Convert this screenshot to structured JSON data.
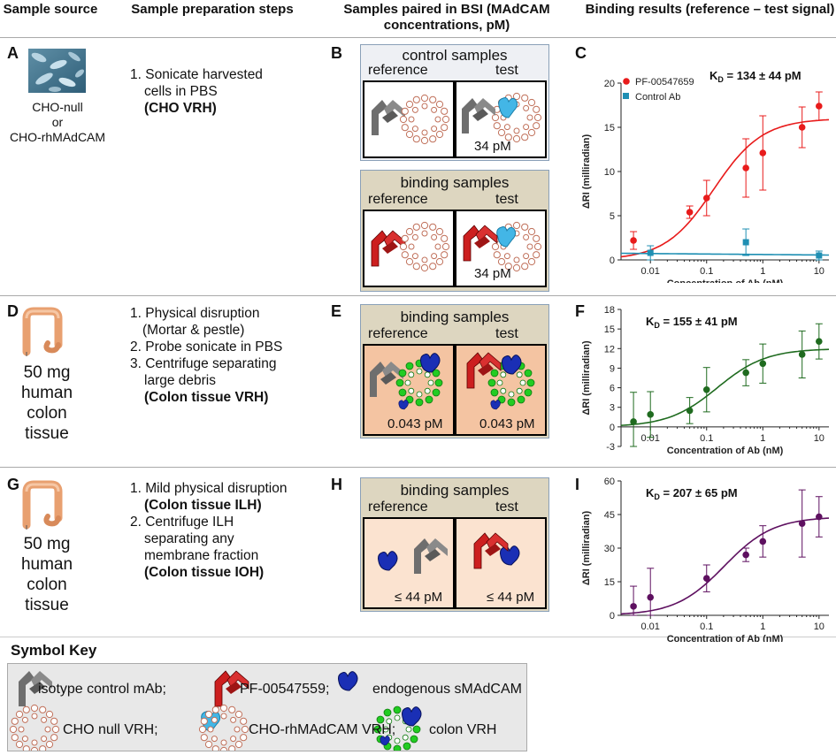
{
  "headers": {
    "col1": "Sample source",
    "col2": "Sample preparation steps",
    "col3": "Samples paired in BSI (MAdCAM concentrations, pM)",
    "col4": "Binding results (reference – test signal)"
  },
  "rows": {
    "a": {
      "letter": "A",
      "source_lines": [
        "CHO-null",
        "or",
        "CHO-rhMAdCAM"
      ],
      "steps": [
        "1. Sonicate harvested",
        "cells in PBS"
      ],
      "steps_bold": "(CHO VRH)"
    },
    "d": {
      "letter": "D",
      "source_lines": [
        "50 mg",
        "human",
        "colon",
        "tissue"
      ],
      "steps": [
        "1. Physical disruption",
        "(Mortar & pestle)",
        "2. Probe sonicate in PBS",
        "3. Centrifuge separating",
        "large debris"
      ],
      "steps_bold": "(Colon tissue VRH)"
    },
    "g": {
      "letter": "G",
      "source_lines": [
        "50 mg",
        "human",
        "colon",
        "tissue"
      ],
      "step1": "1. Mild physical disruption",
      "step1_bold": "(Colon tissue ILH)",
      "step2": [
        "2. Centrifuge ILH",
        "separating any",
        "membrane fraction"
      ],
      "step2_bold": "(Colon tissue IOH)"
    }
  },
  "panels": {
    "b": {
      "letter": "B",
      "control_title": "control samples",
      "binding_title": "binding samples",
      "reference": "reference",
      "test": "test",
      "control_conc": "34 pM",
      "binding_conc": "34 pM"
    },
    "e": {
      "letter": "E",
      "title": "binding samples",
      "reference": "reference",
      "test": "test",
      "ref_conc": "0.043 pM",
      "test_conc": "0.043 pM"
    },
    "h": {
      "letter": "H",
      "title": "binding samples",
      "reference": "reference",
      "test": "test",
      "ref_conc": "≤ 44 pM",
      "test_conc": "≤ 44 pM"
    }
  },
  "symbol_key": {
    "title": "Symbol Key",
    "isotype": "isotype control mAb;",
    "pf": "PF-00547559;",
    "smadcam": "endogenous sMAdCAM",
    "cho_null": "CHO null VRH;",
    "cho_rh": "CHO-rhMAdCAM VRH;",
    "colon": "colon VRH"
  },
  "colors": {
    "isotype_gray": "#6e6e6e",
    "pf_red": "#cc1f1f",
    "madcam_cyan": "#43b6e6",
    "smadcam_blue": "#1a2fb5",
    "vesicle_green": "#22cc22",
    "vesicle_outline": "#c0705a",
    "control_panel_bg": "#eef0f4",
    "binding_panel_bg": "#ddd6c0",
    "tissue_box_bg": "#f4c4a2",
    "ilh_box_bg": "#fbe3d0"
  },
  "chart_data": [
    {
      "letter": "C",
      "type": "scatter",
      "xscale": "log",
      "xlabel": "Concentration of Ab (nM)",
      "ylabel": "ΔRI (milliradian)",
      "ylim": [
        0,
        20
      ],
      "yticks": [
        0,
        5,
        10,
        15,
        20
      ],
      "xticks": [
        0.01,
        0.1,
        1,
        10
      ],
      "xtick_labels": [
        "0.01",
        "0.1",
        "1",
        "10"
      ],
      "kd_prefix": "K",
      "kd_sub": "D",
      "kd_text": " = 134 ± 44 pM",
      "series": [
        {
          "name": "PF-00547659",
          "color": "#e81b1b",
          "marker": "circle",
          "fit": true,
          "ec50": 0.134,
          "top": 16,
          "x": [
            0.005,
            0.05,
            0.1,
            0.5,
            1,
            5,
            10
          ],
          "y": [
            2.2,
            5.4,
            7.0,
            10.4,
            12.1,
            15.0,
            17.4
          ],
          "err": [
            1.0,
            0.7,
            2.0,
            3.3,
            4.2,
            2.3,
            1.6
          ]
        },
        {
          "name": "Control Ab",
          "color": "#1f8fb3",
          "marker": "square",
          "fit": true,
          "flat": true,
          "x": [
            0.01,
            0.5,
            10
          ],
          "y": [
            0.8,
            2.0,
            0.5
          ],
          "err": [
            0.8,
            1.5,
            0.5
          ]
        }
      ],
      "legend": "top-left"
    },
    {
      "letter": "F",
      "type": "scatter",
      "xscale": "log",
      "xlabel": "Concentration of Ab (nM)",
      "ylabel": "ΔRI (milliradian)",
      "ylim": [
        -3,
        18
      ],
      "yticks": [
        -3,
        0,
        3,
        6,
        9,
        12,
        15,
        18
      ],
      "xticks": [
        0.01,
        0.1,
        1,
        10
      ],
      "xtick_labels": [
        "0.01",
        "0.1",
        "1",
        "10"
      ],
      "kd_prefix": "K",
      "kd_sub": "D",
      "kd_text": " = 155 ± 41 pM",
      "series": [
        {
          "name": "",
          "color": "#1f6b1f",
          "marker": "circle",
          "fit": true,
          "ec50": 0.155,
          "top": 12,
          "x": [
            0.005,
            0.01,
            0.05,
            0.1,
            0.5,
            1,
            5,
            10
          ],
          "y": [
            0.8,
            1.9,
            2.5,
            5.7,
            8.3,
            9.7,
            11.1,
            13.1
          ],
          "err": [
            4.5,
            3.5,
            2.0,
            3.4,
            2.0,
            3.0,
            3.6,
            2.7
          ]
        }
      ]
    },
    {
      "letter": "I",
      "type": "scatter",
      "xscale": "log",
      "xlabel": "Concentration of Ab (nM)",
      "ylabel": "ΔRI (milliradian)",
      "ylim": [
        0,
        60
      ],
      "yticks": [
        0,
        15,
        30,
        45,
        60
      ],
      "xticks": [
        0.01,
        0.1,
        1,
        10
      ],
      "xtick_labels": [
        "0.01",
        "0.1",
        "1",
        "10"
      ],
      "kd_prefix": "K",
      "kd_sub": "D",
      "kd_text": " = 207 ± 65 pM",
      "series": [
        {
          "name": "",
          "color": "#5e1060",
          "marker": "circle",
          "fit": true,
          "ec50": 0.207,
          "top": 44,
          "x": [
            0.005,
            0.01,
            0.1,
            0.5,
            1,
            5,
            10
          ],
          "y": [
            4,
            8,
            16.5,
            27,
            33,
            41,
            44
          ],
          "err": [
            9,
            13,
            6,
            3,
            7,
            15,
            9
          ]
        }
      ]
    }
  ]
}
